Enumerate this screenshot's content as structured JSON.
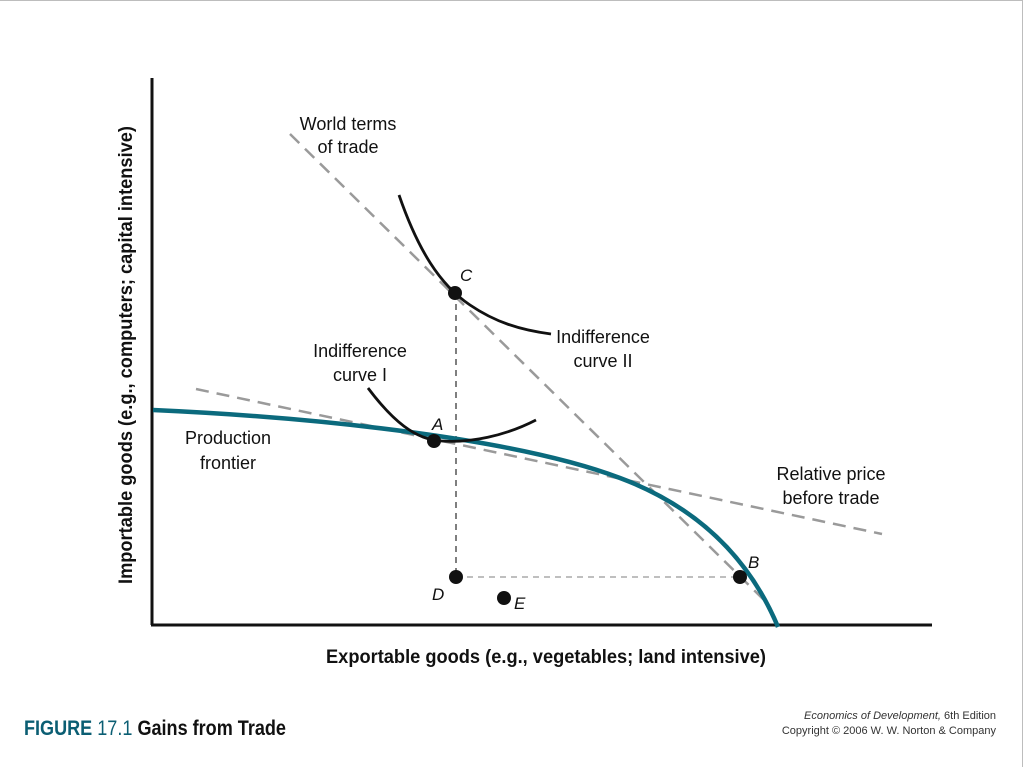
{
  "figure": {
    "label": "FIGURE",
    "number": "17.1",
    "title": "Gains from Trade"
  },
  "credit": {
    "book_title": "Economics of Development,",
    "edition": "6th Edition",
    "copyright": "Copyright © 2006 W. W. Norton & Company"
  },
  "axes": {
    "x_label": "Exportable goods (e.g., vegetables; land intensive)",
    "y_label": "Importable goods (e.g., computers; capital intensive)"
  },
  "labels": {
    "world_terms_line1": "World terms",
    "world_terms_line2": "of trade",
    "indiff2_line1": "Indifference",
    "indiff2_line2": "curve II",
    "indiff1_line1": "Indifference",
    "indiff1_line2": "curve I",
    "production_line1": "Production",
    "production_line2": "frontier",
    "relprice_line1": "Relative price",
    "relprice_line2": "before trade"
  },
  "points": {
    "A": "A",
    "B": "B",
    "C": "C",
    "D": "D",
    "E": "E"
  },
  "colors": {
    "frontier": "#0b6a7d",
    "dashed": "#9a9a9a",
    "curve": "#111111",
    "accent": "#0b5e73"
  }
}
